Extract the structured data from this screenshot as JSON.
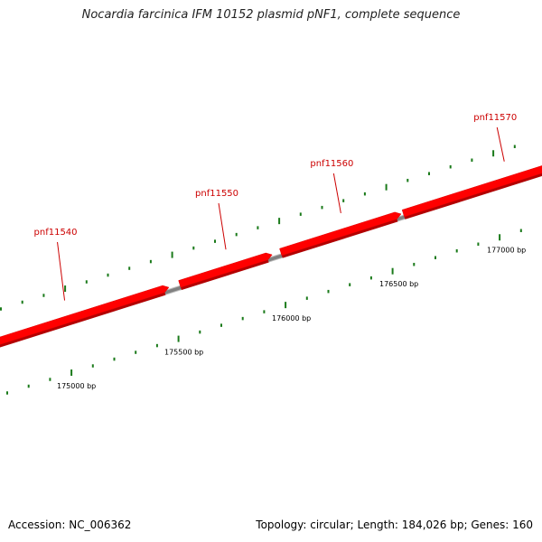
{
  "title": "Nocardia farcinica IFM 10152 plasmid pNF1, complete sequence",
  "footer": {
    "accession": "Accession: NC_006362",
    "summary": "Topology: circular; Length: 184,026 bp; Genes: 160"
  },
  "genes": [
    {
      "name": "pnf11540",
      "start": 174450,
      "end": 175420,
      "strand": "+"
    },
    {
      "name": "pnf11550",
      "start": 175470,
      "end": 175900,
      "strand": "+"
    },
    {
      "name": "pnf11560",
      "start": 175940,
      "end": 176500,
      "strand": "+"
    },
    {
      "name": "pnf11570",
      "start": 176510,
      "end": 177450,
      "strand": "+"
    }
  ],
  "position_labels": [
    {
      "bp": 175000,
      "text": "175000 bp"
    },
    {
      "bp": 175500,
      "text": "175500 bp"
    },
    {
      "bp": 176000,
      "text": "176000 bp"
    },
    {
      "bp": 176500,
      "text": "176500 bp"
    },
    {
      "bp": 177000,
      "text": "177000 bp"
    }
  ],
  "colors": {
    "gene": "#ff0000",
    "gene_shade": "#b30000",
    "backbone": "#808080",
    "tick": "#1a7a1a",
    "label": "#cc0000"
  }
}
